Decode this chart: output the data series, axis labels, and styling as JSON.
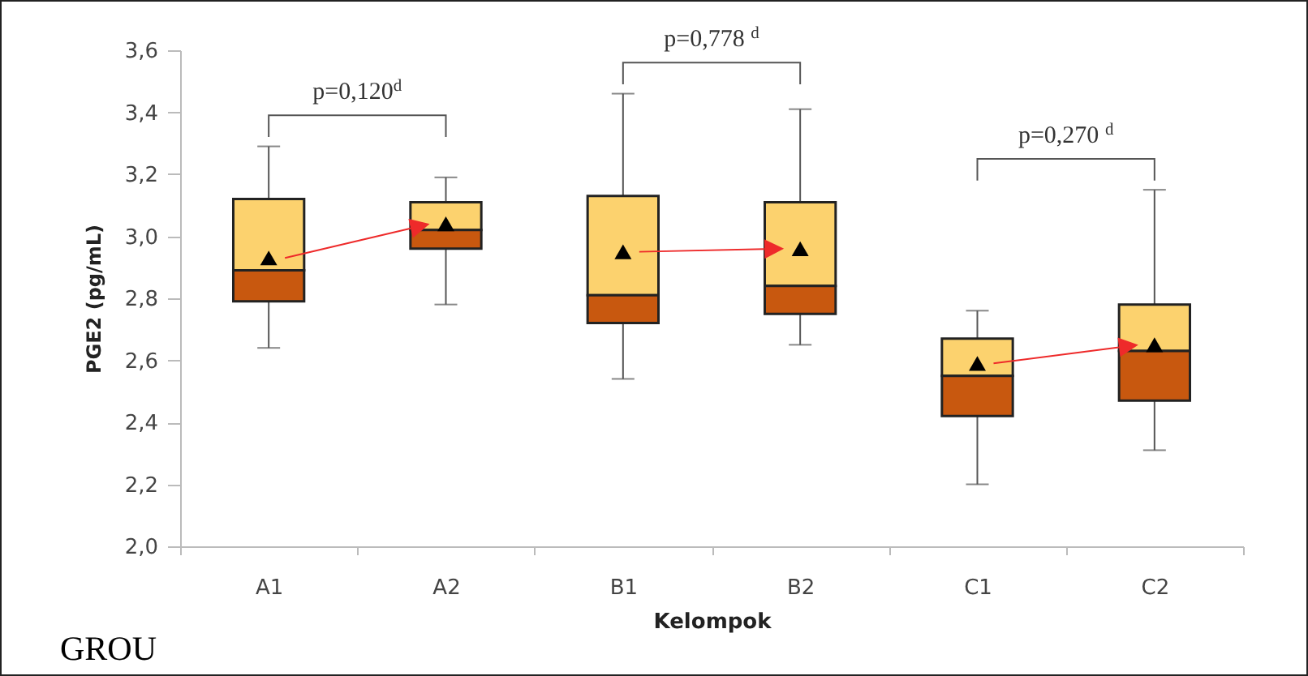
{
  "chart_data": {
    "type": "box",
    "xlabel": "Kelompok",
    "ylabel": "PGE2 (pg/mL)",
    "categories": [
      "A1",
      "A2",
      "B1",
      "B2",
      "C1",
      "C2"
    ],
    "series": [
      {
        "color": "#c8580f",
        "boxes": [
          {
            "low": 2.64,
            "q1": 2.79,
            "median": 2.89,
            "q3": 3.12,
            "high": 3.29,
            "mean": 2.93
          },
          {
            "low": 2.78,
            "q1": 2.96,
            "median": 3.02,
            "q3": 3.11,
            "high": 3.19,
            "mean": 3.04
          },
          {
            "low": 2.54,
            "q1": 2.72,
            "median": 2.81,
            "q3": 3.13,
            "high": 3.46,
            "mean": 2.95
          },
          {
            "low": 2.65,
            "q1": 2.75,
            "median": 2.84,
            "q3": 3.11,
            "high": 3.41,
            "mean": 2.96
          },
          {
            "low": 2.2,
            "q1": 2.42,
            "median": 2.55,
            "q3": 2.67,
            "high": 2.76,
            "mean": 2.59
          },
          {
            "low": 2.31,
            "q1": 2.47,
            "median": 2.63,
            "q3": 2.78,
            "high": 3.15,
            "mean": 2.65
          }
        ]
      }
    ],
    "ylim": [
      2.0,
      3.6
    ],
    "yticks": [
      {
        "value": 2.0,
        "label": "2,0"
      },
      {
        "value": 2.2,
        "label": "2,2"
      },
      {
        "value": 2.4,
        "label": "2,4"
      },
      {
        "value": 2.6,
        "label": "2,6"
      },
      {
        "value": 2.8,
        "label": "2,8"
      },
      {
        "value": 3.0,
        "label": "3,0"
      },
      {
        "value": 3.2,
        "label": "3,2"
      },
      {
        "value": 3.4,
        "label": "3,4"
      },
      {
        "value": 3.6,
        "label": "3,6"
      }
    ],
    "grid": false,
    "marker": "triangle",
    "annotations": [
      "p=0,120$^{d}$",
      "p=0,778 $^{d}$",
      "p=0,270 $^{d}$",
      "GROU"
    ]
  }
}
